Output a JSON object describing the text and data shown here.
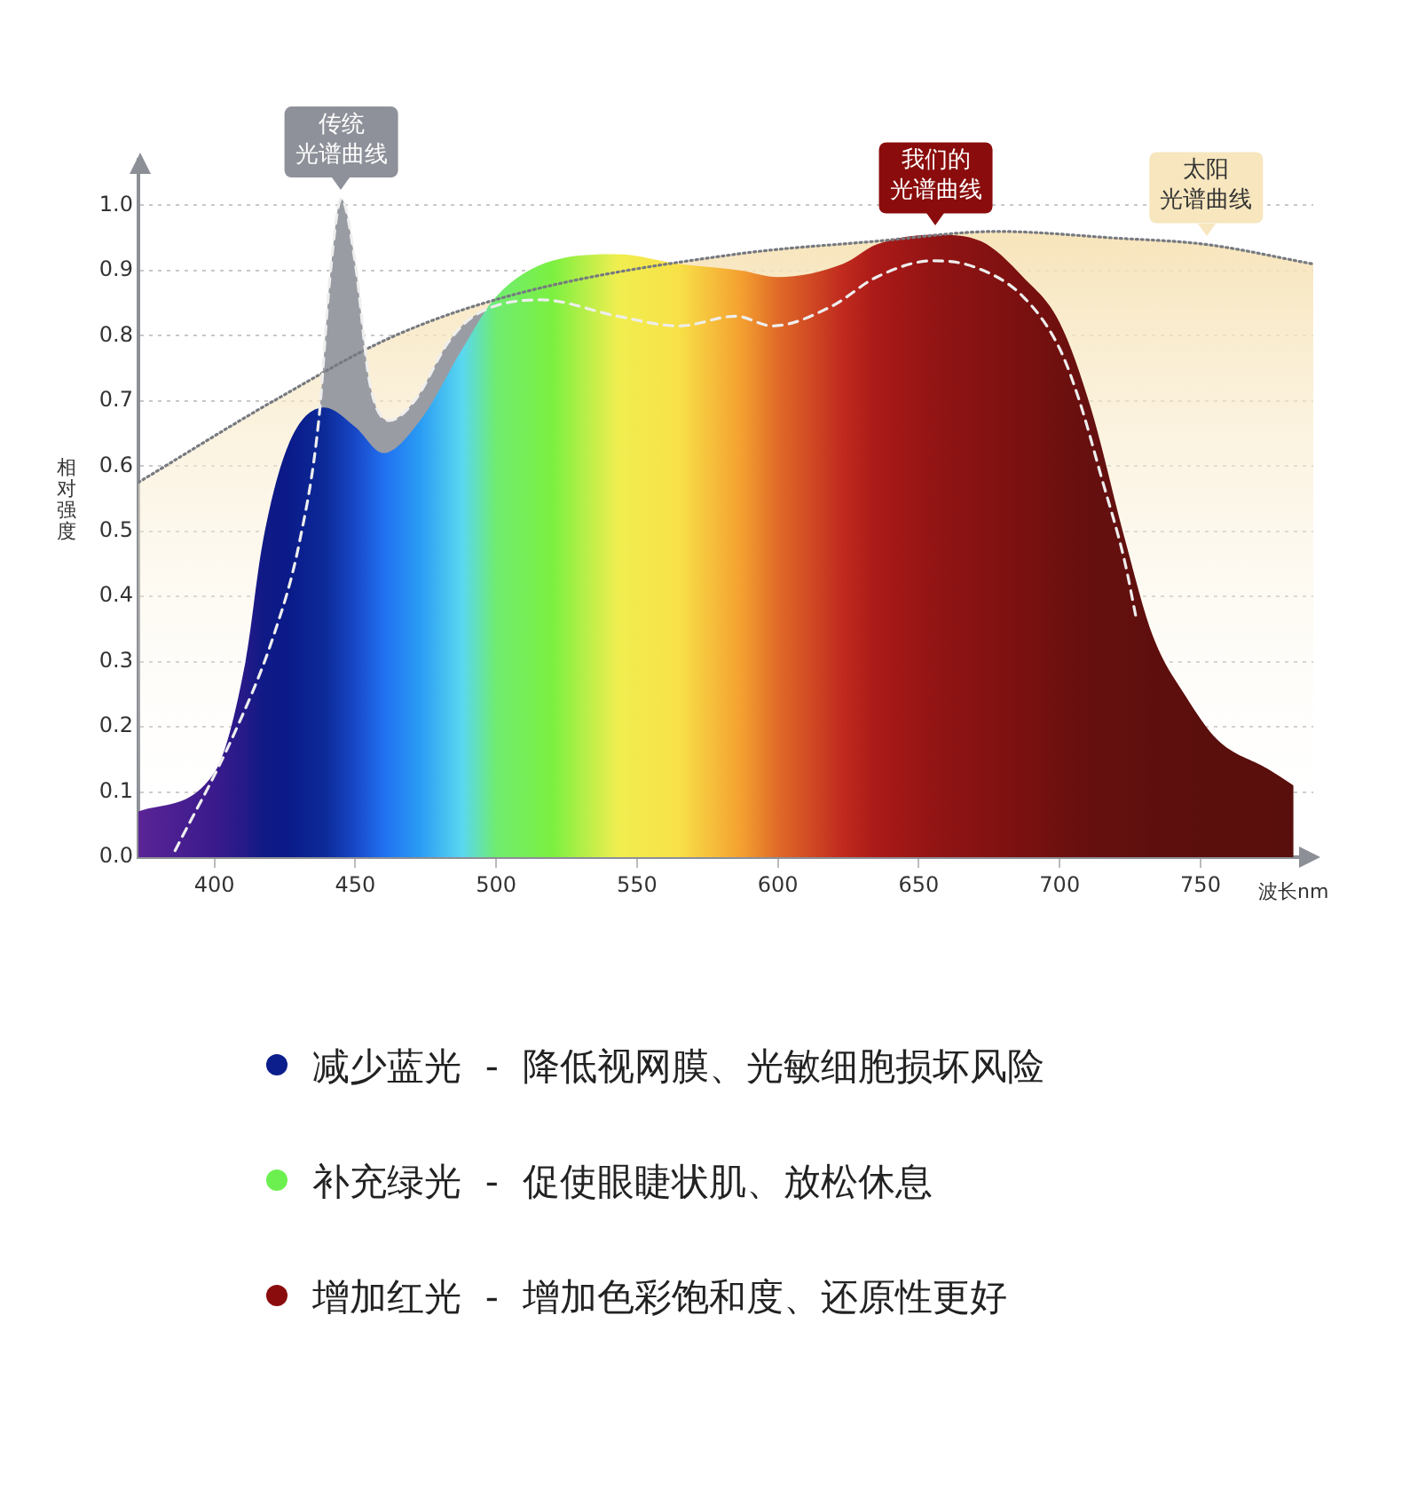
{
  "chart_data": {
    "type": "area",
    "xlabel": "波长nm",
    "ylabel": "相对强度",
    "xlim": [
      373,
      790
    ],
    "xticks": [
      400,
      450,
      500,
      550,
      600,
      650,
      700,
      750
    ],
    "ylim": [
      0,
      1.07
    ],
    "yticks": [
      {
        "value": 0,
        "label": "0.0"
      },
      0.1,
      0.2,
      0.3,
      0.4,
      0.5,
      0.6,
      0.7,
      0.8,
      0.9,
      {
        "value": 1,
        "label": "1.0"
      }
    ],
    "grid": "y",
    "legend": false,
    "series": [
      {
        "color": "#f5deaa",
        "line_style": "dotted",
        "x": [
          373,
          421,
          464,
          508,
          585,
          635,
          678,
          719,
          752,
          790
        ],
        "values": [
          0.575,
          0.7,
          0.8,
          0.865,
          0.925,
          0.945,
          0.96,
          0.95,
          0.94,
          0.91
        ]
      },
      {
        "color": "#9a9ca3",
        "line_style": "dashed",
        "x": [
          386,
          406,
          421,
          430,
          437,
          441,
          445,
          450,
          455,
          462,
          471,
          483,
          492,
          516,
          543,
          565,
          585,
          598,
          619,
          635,
          655,
          670,
          687,
          700,
          707,
          715,
          723,
          727
        ],
        "values": [
          0.01,
          0.18,
          0.34,
          0.48,
          0.67,
          0.89,
          1.01,
          0.91,
          0.73,
          0.67,
          0.7,
          0.79,
          0.83,
          0.855,
          0.83,
          0.815,
          0.83,
          0.815,
          0.845,
          0.89,
          0.915,
          0.905,
          0.86,
          0.78,
          0.7,
          0.58,
          0.455,
          0.37
        ]
      },
      {
        "line_style": "solid",
        "x": [
          373,
          400,
          411,
          417,
          426,
          439,
          450,
          460,
          473,
          488,
          500,
          520,
          543,
          565,
          587,
          600,
          623,
          635,
          656,
          672,
          687,
          700,
          711,
          723,
          733,
          745,
          756,
          774,
          783
        ],
        "values": [
          0.07,
          0.13,
          0.3,
          0.48,
          0.63,
          0.69,
          0.66,
          0.62,
          0.67,
          0.78,
          0.86,
          0.915,
          0.925,
          0.91,
          0.9,
          0.89,
          0.91,
          0.94,
          0.955,
          0.945,
          0.89,
          0.82,
          0.69,
          0.49,
          0.34,
          0.245,
          0.18,
          0.135,
          0.11
        ],
        "colors": [
          "#5a2496",
          "#3a1a8c",
          "#241a88",
          "#101a86",
          "#0a1a88",
          "#0c2a98",
          "#1848c8",
          "#2070f0",
          "#2a9cf4",
          "#5ad8f0",
          "#70ec70",
          "#7cf040",
          "#f0ee50",
          "#f8e048",
          "#f4a030",
          "#e06a28",
          "#c02a1e",
          "#aa1a18",
          "#921414",
          "#861212",
          "#7a1010",
          "#6e100e",
          "#661010",
          "#62100e",
          "#5e0f0d",
          "#5c0f0d",
          "#5a0f0c",
          "#5a0f0c",
          "#580f0c"
        ]
      }
    ],
    "annotations": [
      {
        "text": "太阳光谱曲线",
        "x": 752,
        "y": 0.94
      },
      {
        "text": "传统光谱曲线",
        "x": 445,
        "y": 1.01
      },
      {
        "text": "我们的光谱曲线",
        "x": 656,
        "y": 0.955
      },
      "减少蓝光  -  降低视网膜、光敏细胞损坏风险",
      "补充绿光  -  促使眼睫状肌、放松休息",
      "增加红光  -  增加色彩饱和度、还原性更好"
    ]
  }
}
